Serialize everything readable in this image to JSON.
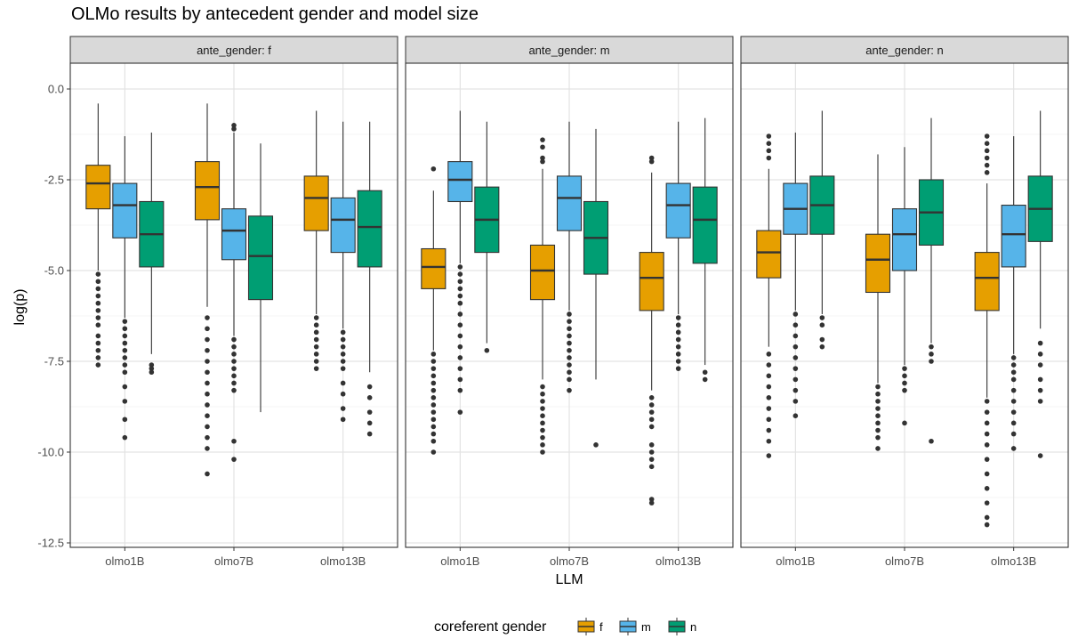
{
  "chart_data": {
    "type": "boxplot",
    "title": "OLMo results by antecedent gender and model size",
    "xlabel": "LLM",
    "ylabel": "log(p)",
    "ylim": [
      -12.6,
      0.6
    ],
    "yticks": [
      0.0,
      -2.5,
      -5.0,
      -7.5,
      -10.0,
      -12.5
    ],
    "ytick_labels": [
      "0.0",
      "-2.5",
      "-5.0",
      "-7.5",
      "-10.0",
      "-12.5"
    ],
    "categories": [
      "olmo1B",
      "olmo7B",
      "olmo13B"
    ],
    "legend": {
      "title": "coreferent gender",
      "position": "bottom",
      "entries": [
        "f",
        "m",
        "n"
      ]
    },
    "colors": {
      "f": "#E69F00",
      "m": "#56B4E9",
      "n": "#009E73"
    },
    "grid": true,
    "panels": [
      {
        "strip": "ante_gender: f",
        "groups": [
          {
            "llm": "olmo1B",
            "boxes": [
              {
                "gender": "f",
                "whisker_high": -0.4,
                "q3": -2.1,
                "median": -2.6,
                "q1": -3.3,
                "whisker_low": -5.0,
                "outliers": [
                  -5.1,
                  -5.3,
                  -5.5,
                  -5.7,
                  -5.9,
                  -6.1,
                  -6.3,
                  -6.5,
                  -6.8,
                  -7.0,
                  -7.2,
                  -7.4,
                  -7.6
                ]
              },
              {
                "gender": "m",
                "whisker_high": -1.3,
                "q3": -2.6,
                "median": -3.2,
                "q1": -4.1,
                "whisker_low": -6.3,
                "outliers": [
                  -6.4,
                  -6.6,
                  -6.8,
                  -7.0,
                  -7.2,
                  -7.4,
                  -7.6,
                  -7.8,
                  -8.2,
                  -8.6,
                  -9.1,
                  -9.6
                ]
              },
              {
                "gender": "n",
                "whisker_high": -1.2,
                "q3": -3.1,
                "median": -4.0,
                "q1": -4.9,
                "whisker_low": -7.3,
                "outliers": [
                  -7.6,
                  -7.7,
                  -7.8
                ]
              }
            ]
          },
          {
            "llm": "olmo7B",
            "boxes": [
              {
                "gender": "f",
                "whisker_high": -0.4,
                "q3": -2.0,
                "median": -2.7,
                "q1": -3.6,
                "whisker_low": -6.0,
                "outliers": [
                  -6.3,
                  -6.6,
                  -6.9,
                  -7.2,
                  -7.5,
                  -7.8,
                  -8.1,
                  -8.4,
                  -8.7,
                  -9.0,
                  -9.3,
                  -9.6,
                  -9.9,
                  -10.6
                ]
              },
              {
                "gender": "m",
                "whisker_high": -1.2,
                "q3": -3.3,
                "median": -3.9,
                "q1": -4.7,
                "whisker_low": -6.8,
                "outliers": [
                  -1.0,
                  -1.1,
                  -6.9,
                  -7.1,
                  -7.3,
                  -7.5,
                  -7.7,
                  -7.9,
                  -8.1,
                  -8.3,
                  -9.7,
                  -10.2
                ]
              },
              {
                "gender": "n",
                "whisker_high": -1.5,
                "q3": -3.5,
                "median": -4.6,
                "q1": -5.8,
                "whisker_low": -8.9,
                "outliers": []
              }
            ]
          },
          {
            "llm": "olmo13B",
            "boxes": [
              {
                "gender": "f",
                "whisker_high": -0.6,
                "q3": -2.4,
                "median": -3.0,
                "q1": -3.9,
                "whisker_low": -6.2,
                "outliers": [
                  -6.3,
                  -6.5,
                  -6.7,
                  -6.9,
                  -7.1,
                  -7.3,
                  -7.5,
                  -7.7
                ]
              },
              {
                "gender": "m",
                "whisker_high": -0.9,
                "q3": -3.0,
                "median": -3.6,
                "q1": -4.5,
                "whisker_low": -6.6,
                "outliers": [
                  -6.7,
                  -6.9,
                  -7.1,
                  -7.3,
                  -7.5,
                  -7.7,
                  -8.1,
                  -8.4,
                  -8.8,
                  -9.1
                ]
              },
              {
                "gender": "n",
                "whisker_high": -0.9,
                "q3": -2.8,
                "median": -3.8,
                "q1": -4.9,
                "whisker_low": -7.8,
                "outliers": [
                  -8.2,
                  -8.5,
                  -8.9,
                  -9.2,
                  -9.5
                ]
              }
            ]
          }
        ]
      },
      {
        "strip": "ante_gender: m",
        "groups": [
          {
            "llm": "olmo1B",
            "boxes": [
              {
                "gender": "f",
                "whisker_high": -2.8,
                "q3": -4.4,
                "median": -4.9,
                "q1": -5.5,
                "whisker_low": -7.2,
                "outliers": [
                  -2.2,
                  -7.3,
                  -7.5,
                  -7.7,
                  -7.9,
                  -8.1,
                  -8.3,
                  -8.5,
                  -8.7,
                  -8.9,
                  -9.1,
                  -9.3,
                  -9.5,
                  -9.7,
                  -10.0
                ]
              },
              {
                "gender": "m",
                "whisker_high": -0.6,
                "q3": -2.0,
                "median": -2.5,
                "q1": -3.1,
                "whisker_low": -4.8,
                "outliers": [
                  -4.9,
                  -5.1,
                  -5.3,
                  -5.5,
                  -5.7,
                  -5.9,
                  -6.2,
                  -6.5,
                  -6.8,
                  -7.1,
                  -7.4,
                  -7.7,
                  -8.0,
                  -8.3,
                  -8.9
                ]
              },
              {
                "gender": "n",
                "whisker_high": -0.9,
                "q3": -2.7,
                "median": -3.6,
                "q1": -4.5,
                "whisker_low": -7.0,
                "outliers": [
                  -7.2
                ]
              }
            ]
          },
          {
            "llm": "olmo7B",
            "boxes": [
              {
                "gender": "f",
                "whisker_high": -2.2,
                "q3": -4.3,
                "median": -5.0,
                "q1": -5.8,
                "whisker_low": -8.0,
                "outliers": [
                  -1.4,
                  -1.6,
                  -1.9,
                  -2.0,
                  -8.2,
                  -8.4,
                  -8.6,
                  -8.8,
                  -9.0,
                  -9.2,
                  -9.4,
                  -9.6,
                  -9.8,
                  -10.0
                ]
              },
              {
                "gender": "m",
                "whisker_high": -0.9,
                "q3": -2.4,
                "median": -3.0,
                "q1": -3.9,
                "whisker_low": -6.1,
                "outliers": [
                  -6.2,
                  -6.4,
                  -6.6,
                  -6.8,
                  -7.0,
                  -7.2,
                  -7.4,
                  -7.6,
                  -7.8,
                  -8.0,
                  -8.3
                ]
              },
              {
                "gender": "n",
                "whisker_high": -1.1,
                "q3": -3.1,
                "median": -4.1,
                "q1": -5.1,
                "whisker_low": -8.0,
                "outliers": [
                  -9.8
                ]
              }
            ]
          },
          {
            "llm": "olmo13B",
            "boxes": [
              {
                "gender": "f",
                "whisker_high": -2.3,
                "q3": -4.5,
                "median": -5.2,
                "q1": -6.1,
                "whisker_low": -8.3,
                "outliers": [
                  -1.9,
                  -2.0,
                  -8.5,
                  -8.7,
                  -8.9,
                  -9.1,
                  -9.3,
                  -9.8,
                  -10.0,
                  -10.2,
                  -10.4,
                  -11.3,
                  -11.4
                ]
              },
              {
                "gender": "m",
                "whisker_high": -0.9,
                "q3": -2.6,
                "median": -3.2,
                "q1": -4.1,
                "whisker_low": -6.2,
                "outliers": [
                  -6.3,
                  -6.5,
                  -6.7,
                  -6.9,
                  -7.1,
                  -7.3,
                  -7.5,
                  -7.7
                ]
              },
              {
                "gender": "n",
                "whisker_high": -0.8,
                "q3": -2.7,
                "median": -3.6,
                "q1": -4.8,
                "whisker_low": -7.6,
                "outliers": [
                  -7.8,
                  -8.0
                ]
              }
            ]
          }
        ]
      },
      {
        "strip": "ante_gender: n",
        "groups": [
          {
            "llm": "olmo1B",
            "boxes": [
              {
                "gender": "f",
                "whisker_high": -2.2,
                "q3": -3.9,
                "median": -4.5,
                "q1": -5.2,
                "whisker_low": -7.1,
                "outliers": [
                  -1.3,
                  -1.5,
                  -1.7,
                  -1.9,
                  -7.3,
                  -7.6,
                  -7.9,
                  -8.2,
                  -8.5,
                  -8.8,
                  -9.1,
                  -9.4,
                  -9.7,
                  -10.1
                ]
              },
              {
                "gender": "m",
                "whisker_high": -1.2,
                "q3": -2.6,
                "median": -3.3,
                "q1": -4.0,
                "whisker_low": -6.1,
                "outliers": [
                  -6.2,
                  -6.5,
                  -6.8,
                  -7.1,
                  -7.4,
                  -7.7,
                  -8.0,
                  -8.3,
                  -8.6,
                  -9.0
                ]
              },
              {
                "gender": "n",
                "whisker_high": -0.6,
                "q3": -2.4,
                "median": -3.2,
                "q1": -4.0,
                "whisker_low": -6.2,
                "outliers": [
                  -6.3,
                  -6.5,
                  -6.9,
                  -7.1
                ]
              }
            ]
          },
          {
            "llm": "olmo7B",
            "boxes": [
              {
                "gender": "f",
                "whisker_high": -1.8,
                "q3": -4.0,
                "median": -4.7,
                "q1": -5.6,
                "whisker_low": -8.1,
                "outliers": [
                  -8.2,
                  -8.4,
                  -8.6,
                  -8.8,
                  -9.0,
                  -9.2,
                  -9.4,
                  -9.6,
                  -9.9
                ]
              },
              {
                "gender": "m",
                "whisker_high": -1.6,
                "q3": -3.3,
                "median": -4.0,
                "q1": -5.0,
                "whisker_low": -7.6,
                "outliers": [
                  -7.7,
                  -7.9,
                  -8.1,
                  -8.3,
                  -9.2
                ]
              },
              {
                "gender": "n",
                "whisker_high": -0.8,
                "q3": -2.5,
                "median": -3.4,
                "q1": -4.3,
                "whisker_low": -7.0,
                "outliers": [
                  -7.1,
                  -7.3,
                  -7.5,
                  -9.7
                ]
              }
            ]
          },
          {
            "llm": "olmo13B",
            "boxes": [
              {
                "gender": "f",
                "whisker_high": -2.6,
                "q3": -4.5,
                "median": -5.2,
                "q1": -6.1,
                "whisker_low": -8.5,
                "outliers": [
                  -1.3,
                  -1.5,
                  -1.7,
                  -1.9,
                  -2.1,
                  -2.3,
                  -8.6,
                  -8.9,
                  -9.2,
                  -9.5,
                  -9.8,
                  -10.2,
                  -10.6,
                  -11.0,
                  -11.4,
                  -11.8,
                  -12.0
                ]
              },
              {
                "gender": "m",
                "whisker_high": -1.3,
                "q3": -3.2,
                "median": -4.0,
                "q1": -4.9,
                "whisker_low": -7.3,
                "outliers": [
                  -7.4,
                  -7.6,
                  -7.8,
                  -8.0,
                  -8.3,
                  -8.6,
                  -8.9,
                  -9.2,
                  -9.5,
                  -9.9
                ]
              },
              {
                "gender": "n",
                "whisker_high": -0.6,
                "q3": -2.4,
                "median": -3.3,
                "q1": -4.2,
                "whisker_low": -6.6,
                "outliers": [
                  -7.0,
                  -7.3,
                  -7.6,
                  -8.0,
                  -8.3,
                  -8.6,
                  -10.1
                ]
              }
            ]
          }
        ]
      }
    ]
  }
}
